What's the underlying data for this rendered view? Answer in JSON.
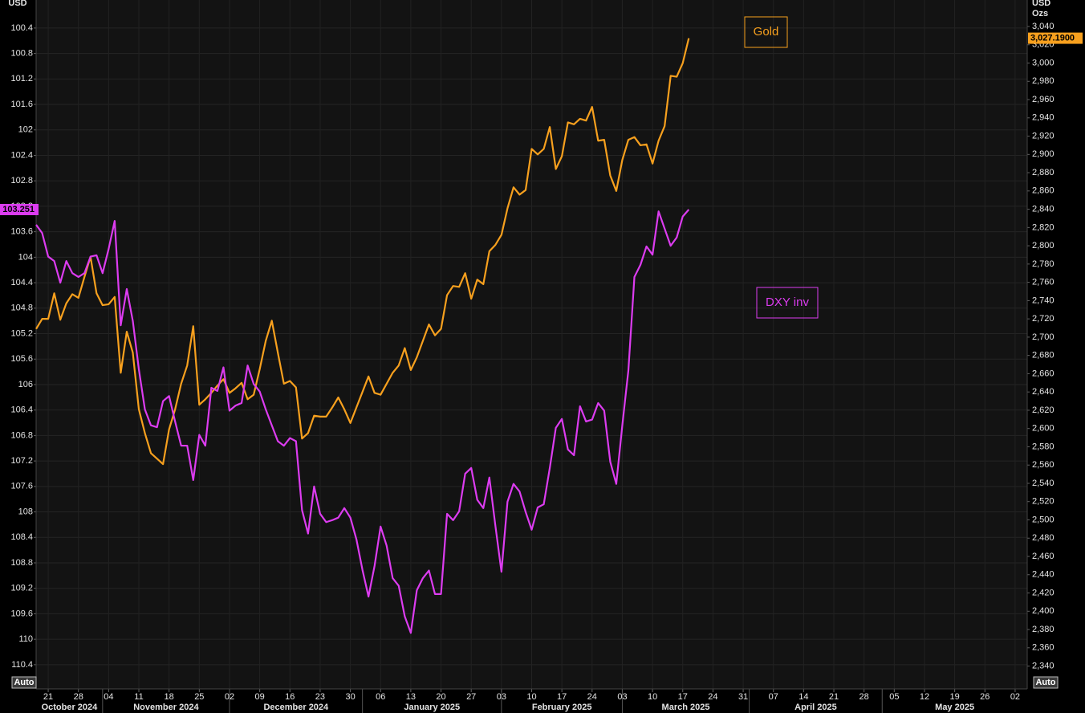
{
  "chart_data": {
    "type": "line",
    "y_label": "USD",
    "y2_label": "USD",
    "y2_unit": "Ozs",
    "buttons": [
      "Auto",
      "Auto"
    ],
    "grid": true,
    "x": [
      "2024-10-17",
      "2024-10-18",
      "2024-10-21",
      "2024-10-22",
      "2024-10-23",
      "2024-10-24",
      "2024-10-25",
      "2024-10-28",
      "2024-10-29",
      "2024-10-30",
      "2024-10-31",
      "2024-11-01",
      "2024-11-04",
      "2024-11-05",
      "2024-11-06",
      "2024-11-07",
      "2024-11-08",
      "2024-11-11",
      "2024-11-12",
      "2024-11-13",
      "2024-11-14",
      "2024-11-15",
      "2024-11-18",
      "2024-11-19",
      "2024-11-20",
      "2024-11-21",
      "2024-11-22",
      "2024-11-25",
      "2024-11-26",
      "2024-11-27",
      "2024-11-28",
      "2024-11-29",
      "2024-12-02",
      "2024-12-03",
      "2024-12-04",
      "2024-12-05",
      "2024-12-06",
      "2024-12-09",
      "2024-12-10",
      "2024-12-11",
      "2024-12-12",
      "2024-12-13",
      "2024-12-16",
      "2024-12-17",
      "2024-12-18",
      "2024-12-19",
      "2024-12-20",
      "2024-12-23",
      "2024-12-24",
      "2024-12-25",
      "2024-12-26",
      "2024-12-27",
      "2024-12-30",
      "2024-12-31",
      "2025-01-01",
      "2025-01-02",
      "2025-01-03",
      "2025-01-06",
      "2025-01-07",
      "2025-01-08",
      "2025-01-09",
      "2025-01-10",
      "2025-01-13",
      "2025-01-14",
      "2025-01-15",
      "2025-01-16",
      "2025-01-17",
      "2025-01-20",
      "2025-01-21",
      "2025-01-22",
      "2025-01-23",
      "2025-01-24",
      "2025-01-27",
      "2025-01-28",
      "2025-01-29",
      "2025-01-30",
      "2025-01-31",
      "2025-02-03",
      "2025-02-04",
      "2025-02-05",
      "2025-02-06",
      "2025-02-07",
      "2025-02-10",
      "2025-02-11",
      "2025-02-12",
      "2025-02-13",
      "2025-02-14",
      "2025-02-17",
      "2025-02-18",
      "2025-02-19",
      "2025-02-20",
      "2025-02-21",
      "2025-02-24",
      "2025-02-25",
      "2025-02-26",
      "2025-02-27",
      "2025-02-28",
      "2025-03-03",
      "2025-03-04",
      "2025-03-05",
      "2025-03-06",
      "2025-03-07",
      "2025-03-10",
      "2025-03-11",
      "2025-03-12",
      "2025-03-13",
      "2025-03-14",
      "2025-03-17",
      "2025-03-18"
    ],
    "xlim": [
      "2024-10-17",
      "2025-06-04"
    ],
    "xticks": [
      {
        "value": "2024-10-21",
        "label": "21"
      },
      {
        "value": "2024-10-28",
        "label": "28"
      },
      {
        "value": "2024-11-04",
        "label": "04"
      },
      {
        "value": "2024-11-11",
        "label": "11"
      },
      {
        "value": "2024-11-18",
        "label": "18"
      },
      {
        "value": "2024-11-25",
        "label": "25"
      },
      {
        "value": "2024-12-02",
        "label": "02"
      },
      {
        "value": "2024-12-09",
        "label": "09"
      },
      {
        "value": "2024-12-16",
        "label": "16"
      },
      {
        "value": "2024-12-23",
        "label": "23"
      },
      {
        "value": "2024-12-30",
        "label": "30"
      },
      {
        "value": "2025-01-06",
        "label": "06"
      },
      {
        "value": "2025-01-13",
        "label": "13"
      },
      {
        "value": "2025-01-20",
        "label": "20"
      },
      {
        "value": "2025-01-27",
        "label": "27"
      },
      {
        "value": "2025-02-03",
        "label": "03"
      },
      {
        "value": "2025-02-10",
        "label": "10"
      },
      {
        "value": "2025-02-17",
        "label": "17"
      },
      {
        "value": "2025-02-24",
        "label": "24"
      },
      {
        "value": "2025-03-03",
        "label": "03"
      },
      {
        "value": "2025-03-10",
        "label": "10"
      },
      {
        "value": "2025-03-17",
        "label": "17"
      },
      {
        "value": "2025-03-24",
        "label": "24"
      },
      {
        "value": "2025-03-31",
        "label": "31"
      },
      {
        "value": "2025-04-07",
        "label": "07"
      },
      {
        "value": "2025-04-14",
        "label": "14"
      },
      {
        "value": "2025-04-21",
        "label": "21"
      },
      {
        "value": "2025-04-28",
        "label": "28"
      },
      {
        "value": "2025-05-05",
        "label": "05"
      },
      {
        "value": "2025-05-12",
        "label": "12"
      },
      {
        "value": "2025-05-19",
        "label": "19"
      },
      {
        "value": "2025-05-26",
        "label": "26"
      },
      {
        "value": "2025-06-02",
        "label": "02"
      }
    ],
    "months": [
      {
        "value": "2024-10-01",
        "label": "October 2024"
      },
      {
        "value": "2024-11-01",
        "label": "November 2024"
      },
      {
        "value": "2024-12-02",
        "label": "December 2024"
      },
      {
        "value": "2025-01-01",
        "label": "January 2025"
      },
      {
        "value": "2025-02-03",
        "label": "February 2025"
      },
      {
        "value": "2025-03-03",
        "label": "March 2025"
      },
      {
        "value": "2025-04-01",
        "label": "April 2025"
      },
      {
        "value": "2025-05-01",
        "label": "May 2025"
      }
    ],
    "ylim": [
      110.78,
      99.96
    ],
    "yticks": [
      100.4,
      100.8,
      101.2,
      101.6,
      102,
      102.4,
      102.8,
      103.2,
      103.6,
      104,
      104.4,
      104.8,
      105.2,
      105.6,
      106,
      106.4,
      106.8,
      107.2,
      107.6,
      108,
      108.4,
      108.8,
      109.2,
      109.6,
      110,
      110.4
    ],
    "y2lim": [
      2315,
      3069
    ],
    "y2ticks": [
      {
        "value": 2340,
        "label": "2,340"
      },
      {
        "value": 2360,
        "label": "2,360"
      },
      {
        "value": 2380,
        "label": "2,380"
      },
      {
        "value": 2400,
        "label": "2,400"
      },
      {
        "value": 2420,
        "label": "2,420"
      },
      {
        "value": 2440,
        "label": "2,440"
      },
      {
        "value": 2460,
        "label": "2,460"
      },
      {
        "value": 2480,
        "label": "2,480"
      },
      {
        "value": 2500,
        "label": "2,500"
      },
      {
        "value": 2520,
        "label": "2,520"
      },
      {
        "value": 2540,
        "label": "2,540"
      },
      {
        "value": 2560,
        "label": "2,560"
      },
      {
        "value": 2580,
        "label": "2,580"
      },
      {
        "value": 2600,
        "label": "2,600"
      },
      {
        "value": 2620,
        "label": "2,620"
      },
      {
        "value": 2640,
        "label": "2,640"
      },
      {
        "value": 2660,
        "label": "2,660"
      },
      {
        "value": 2680,
        "label": "2,680"
      },
      {
        "value": 2700,
        "label": "2,700"
      },
      {
        "value": 2720,
        "label": "2,720"
      },
      {
        "value": 2740,
        "label": "2,740"
      },
      {
        "value": 2760,
        "label": "2,760"
      },
      {
        "value": 2780,
        "label": "2,780"
      },
      {
        "value": 2800,
        "label": "2,800"
      },
      {
        "value": 2820,
        "label": "2,820"
      },
      {
        "value": 2840,
        "label": "2,840"
      },
      {
        "value": 2860,
        "label": "2,860"
      },
      {
        "value": 2880,
        "label": "2,880"
      },
      {
        "value": 2900,
        "label": "2,900"
      },
      {
        "value": 2920,
        "label": "2,920"
      },
      {
        "value": 2940,
        "label": "2,940"
      },
      {
        "value": 2960,
        "label": "2,960"
      },
      {
        "value": 2980,
        "label": "2,980"
      },
      {
        "value": 3000,
        "label": "3,000"
      },
      {
        "value": 3020,
        "label": "3,020"
      },
      {
        "value": 3040,
        "label": "3,040"
      }
    ],
    "series": [
      {
        "name": "Gold",
        "color": "#f7a01e",
        "axis": "y2",
        "values": [
          2709,
          2720,
          2720,
          2748,
          2719,
          2737,
          2747,
          2743,
          2766,
          2788,
          2748,
          2735,
          2736,
          2744,
          2661,
          2706,
          2683,
          2621,
          2595,
          2573,
          2567,
          2561,
          2599,
          2621,
          2649,
          2669,
          2712,
          2626,
          2632,
          2639,
          2647,
          2654,
          2639,
          2644,
          2650,
          2632,
          2637,
          2665,
          2696,
          2718,
          2683,
          2649,
          2652,
          2645,
          2589,
          2595,
          2614,
          2613,
          2613,
          2623,
          2634,
          2621,
          2606,
          2623,
          2640,
          2657,
          2639,
          2637,
          2649,
          2661,
          2669,
          2688,
          2664,
          2678,
          2696,
          2714,
          2702,
          2709,
          2746,
          2756,
          2755,
          2770,
          2742,
          2763,
          2758,
          2794,
          2801,
          2812,
          2841,
          2864,
          2856,
          2861,
          2906,
          2900,
          2906,
          2930,
          2884,
          2898,
          2935,
          2933,
          2939,
          2937,
          2952,
          2915,
          2916,
          2877,
          2860,
          2894,
          2916,
          2919,
          2910,
          2911,
          2890,
          2915,
          2931,
          2986,
          2985,
          3000,
          3027.19
        ],
        "value_labels": [
          null,
          null,
          null,
          null,
          null,
          null,
          null,
          null,
          null,
          null,
          null,
          null,
          null,
          null,
          null,
          null,
          null,
          null,
          null,
          null,
          null,
          null,
          null,
          null,
          null,
          null,
          null,
          null,
          null,
          null,
          null,
          null,
          null,
          null,
          null,
          null,
          null,
          null,
          null,
          null,
          null,
          null,
          null,
          null,
          null,
          null,
          null,
          null,
          null,
          null,
          null,
          null,
          null,
          null,
          null,
          null,
          null,
          null,
          null,
          null,
          null,
          null,
          null,
          null,
          null,
          null,
          null,
          null,
          null,
          null,
          null,
          null,
          null,
          null,
          null,
          null,
          null,
          null,
          null,
          null,
          null,
          null,
          null,
          null,
          null,
          null,
          null,
          null,
          null,
          null,
          null,
          null,
          null,
          null,
          null,
          null,
          null,
          null,
          null,
          null,
          null,
          null,
          null,
          null,
          null,
          null,
          null,
          null,
          "3,027.1900"
        ]
      },
      {
        "name": "DXY inv",
        "color": "#dc3cf0",
        "values": [
          103.49,
          103.62,
          103.99,
          104.06,
          104.4,
          104.06,
          104.25,
          104.31,
          104.25,
          103.99,
          103.97,
          104.25,
          103.87,
          103.43,
          105.07,
          104.5,
          105.0,
          105.76,
          106.39,
          106.64,
          106.67,
          106.26,
          106.18,
          106.58,
          106.96,
          106.96,
          107.5,
          106.79,
          106.96,
          106.05,
          106.1,
          105.73,
          106.41,
          106.33,
          106.29,
          105.7,
          105.99,
          106.11,
          106.39,
          106.64,
          106.89,
          106.96,
          106.84,
          106.89,
          107.97,
          108.34,
          107.6,
          108.03,
          108.16,
          108.13,
          108.09,
          107.94,
          108.09,
          108.43,
          108.91,
          109.33,
          108.85,
          108.23,
          108.53,
          109.04,
          109.16,
          109.64,
          109.9,
          109.23,
          109.04,
          108.92,
          109.29,
          109.29,
          108.03,
          108.13,
          107.99,
          107.4,
          107.31,
          107.81,
          107.94,
          107.46,
          108.22,
          108.94,
          107.84,
          107.56,
          107.68,
          108.0,
          108.28,
          107.93,
          107.88,
          107.31,
          106.68,
          106.54,
          107.02,
          107.11,
          106.34,
          106.58,
          106.55,
          106.29,
          106.41,
          107.21,
          107.56,
          106.64,
          105.78,
          104.31,
          104.12,
          103.83,
          103.96,
          103.28,
          103.55,
          103.82,
          103.69,
          103.36,
          103.251
        ]
      }
    ]
  }
}
